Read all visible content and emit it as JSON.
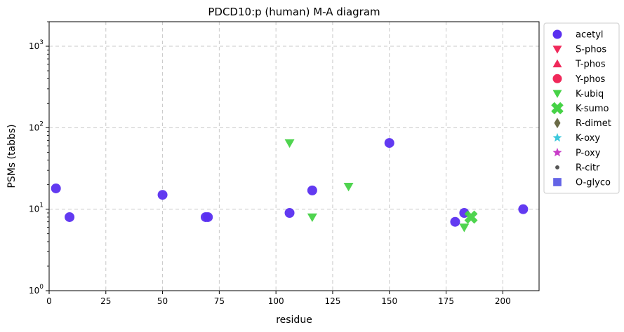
{
  "chart_data": {
    "type": "scatter",
    "title": "PDCD10:p (human) M-A diagram",
    "xlabel": "residue",
    "ylabel": "PSMs (tabbs)",
    "xlim": [
      0,
      216
    ],
    "ylim": [
      1,
      2000
    ],
    "yscale": "log",
    "grid": true,
    "legend_position": "outside-right",
    "x_ticks": [
      0,
      25,
      50,
      75,
      100,
      125,
      150,
      175,
      200
    ],
    "y_ticks": [
      {
        "value": 1,
        "base": "10",
        "exp": "0"
      },
      {
        "value": 10,
        "base": "10",
        "exp": "1"
      },
      {
        "value": 100,
        "base": "10",
        "exp": "2"
      },
      {
        "value": 1000,
        "base": "10",
        "exp": "3"
      }
    ],
    "series": [
      {
        "name": "acetyl",
        "marker": "circle",
        "color": "#5a2ff0",
        "points": [
          [
            3,
            18
          ],
          [
            9,
            8
          ],
          [
            50,
            15
          ],
          [
            69,
            8
          ],
          [
            70,
            8
          ],
          [
            106,
            9
          ],
          [
            116,
            17
          ],
          [
            150,
            65
          ],
          [
            179,
            7
          ],
          [
            183,
            9
          ],
          [
            209,
            10
          ]
        ]
      },
      {
        "name": "S-phos",
        "marker": "triangle-down",
        "color": "#f0285a",
        "points": []
      },
      {
        "name": "T-phos",
        "marker": "triangle-up",
        "color": "#f0285a",
        "points": []
      },
      {
        "name": "Y-phos",
        "marker": "circle",
        "color": "#f0285a",
        "points": []
      },
      {
        "name": "K-ubiq",
        "marker": "triangle-down",
        "color": "#46d246",
        "points": [
          [
            106,
            65
          ],
          [
            116,
            8
          ],
          [
            132,
            19
          ],
          [
            183,
            6
          ]
        ]
      },
      {
        "name": "K-sumo",
        "marker": "x",
        "color": "#46d246",
        "points": [
          [
            186,
            8
          ]
        ]
      },
      {
        "name": "R-dimet",
        "marker": "diamond",
        "color": "#6b6b47",
        "points": []
      },
      {
        "name": "K-oxy",
        "marker": "star",
        "color": "#3cc8dc",
        "points": []
      },
      {
        "name": "P-oxy",
        "marker": "star",
        "color": "#c83cc8",
        "points": []
      },
      {
        "name": "R-citr",
        "marker": "small-circle",
        "color": "#555555",
        "points": []
      },
      {
        "name": "O-glyco",
        "marker": "square",
        "color": "#6464e6",
        "points": []
      }
    ]
  }
}
